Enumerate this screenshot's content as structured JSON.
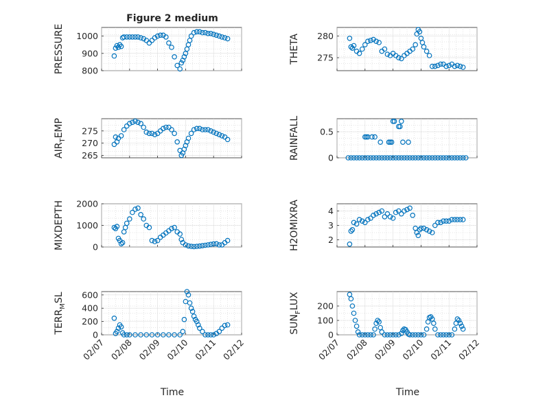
{
  "figure": {
    "title": "Figure 2 medium",
    "accent_color": "#0072BD",
    "x_label": "Time",
    "x_ticks": [
      "02/07",
      "02/08",
      "02/09",
      "02/10",
      "02/11",
      "02/12"
    ]
  },
  "chart_data": [
    {
      "type": "scatter",
      "ylabel": "PRESSURE",
      "xlim": [
        7,
        12
      ],
      "ylim": [
        800,
        1050
      ],
      "yticks": [
        800,
        900,
        1000
      ],
      "grid": true,
      "minor_grid": true,
      "x": [
        7.45,
        7.5,
        7.55,
        7.6,
        7.65,
        7.7,
        7.75,
        7.8,
        7.9,
        8.0,
        8.1,
        8.2,
        8.3,
        8.4,
        8.5,
        8.6,
        8.7,
        8.8,
        8.9,
        9.0,
        9.1,
        9.2,
        9.3,
        9.4,
        9.5,
        9.6,
        9.7,
        9.8,
        9.85,
        9.9,
        9.95,
        10.0,
        10.05,
        10.1,
        10.15,
        10.2,
        10.3,
        10.4,
        10.5,
        10.6,
        10.7,
        10.8,
        10.9,
        11.0,
        11.1,
        11.2,
        11.3,
        11.4,
        11.5
      ],
      "y": [
        885,
        930,
        945,
        935,
        950,
        940,
        990,
        995,
        995,
        995,
        995,
        995,
        995,
        990,
        985,
        975,
        960,
        975,
        990,
        1000,
        1005,
        1005,
        995,
        960,
        935,
        880,
        830,
        810,
        845,
        860,
        880,
        900,
        925,
        950,
        975,
        1000,
        1020,
        1025,
        1025,
        1020,
        1020,
        1015,
        1015,
        1010,
        1005,
        1000,
        995,
        990,
        985
      ]
    },
    {
      "type": "scatter",
      "ylabel": "THETA",
      "xlim": [
        7,
        12
      ],
      "ylim": [
        272,
        282
      ],
      "yticks": [
        275,
        280
      ],
      "grid": true,
      "minor_grid": true,
      "x": [
        7.45,
        7.5,
        7.55,
        7.6,
        7.7,
        7.8,
        7.9,
        8.0,
        8.1,
        8.2,
        8.3,
        8.4,
        8.5,
        8.6,
        8.7,
        8.8,
        8.9,
        9.0,
        9.1,
        9.2,
        9.3,
        9.4,
        9.5,
        9.6,
        9.7,
        9.8,
        9.85,
        9.9,
        9.95,
        10.0,
        10.05,
        10.1,
        10.2,
        10.3,
        10.4,
        10.5,
        10.6,
        10.7,
        10.8,
        10.9,
        11.0,
        11.1,
        11.2,
        11.3,
        11.4,
        11.5
      ],
      "y": [
        279.5,
        277.5,
        277.2,
        277.8,
        276.5,
        276.0,
        277.0,
        278.0,
        278.8,
        279.0,
        279.2,
        278.8,
        278.5,
        276.5,
        277.0,
        275.8,
        275.5,
        276.0,
        275.5,
        275.0,
        274.8,
        275.5,
        276.0,
        276.5,
        277.0,
        278.0,
        280.5,
        281.5,
        281.0,
        279.5,
        278.5,
        277.5,
        276.5,
        275.5,
        273.0,
        273.0,
        273.2,
        273.5,
        273.5,
        273.0,
        273.2,
        273.5,
        273.0,
        273.2,
        273.0,
        272.8
      ]
    },
    {
      "type": "scatter",
      "ylabel": "AIR_TEMP",
      "xlim": [
        7,
        12
      ],
      "ylim": [
        264,
        280
      ],
      "yticks": [
        265,
        270,
        275
      ],
      "grid": true,
      "minor_grid": true,
      "x": [
        7.45,
        7.5,
        7.55,
        7.6,
        7.7,
        7.8,
        7.9,
        8.0,
        8.1,
        8.2,
        8.3,
        8.4,
        8.5,
        8.6,
        8.7,
        8.8,
        8.9,
        9.0,
        9.1,
        9.2,
        9.3,
        9.4,
        9.5,
        9.6,
        9.7,
        9.8,
        9.85,
        9.9,
        9.95,
        10.0,
        10.05,
        10.1,
        10.2,
        10.3,
        10.4,
        10.5,
        10.6,
        10.7,
        10.8,
        10.9,
        11.0,
        11.1,
        11.2,
        11.3,
        11.4,
        11.5
      ],
      "y": [
        269.5,
        272.5,
        270.5,
        272.0,
        273.0,
        275.5,
        277.0,
        278.0,
        278.5,
        279.0,
        278.5,
        278.0,
        276.5,
        274.5,
        274.0,
        274.0,
        273.5,
        274.0,
        275.0,
        276.0,
        276.5,
        276.5,
        275.5,
        274.0,
        270.5,
        267.0,
        265.0,
        266.0,
        267.5,
        269.0,
        270.5,
        272.0,
        274.0,
        275.5,
        276.0,
        276.0,
        275.5,
        275.5,
        275.5,
        275.0,
        274.5,
        274.0,
        273.5,
        273.0,
        272.5,
        271.5
      ]
    },
    {
      "type": "scatter",
      "ylabel": "RAINFALL",
      "xlim": [
        7,
        12
      ],
      "ylim": [
        0,
        0.75
      ],
      "yticks": [
        0,
        0.5
      ],
      "grid": true,
      "minor_grid": true,
      "x": [
        7.4,
        7.5,
        7.6,
        7.7,
        7.8,
        7.9,
        8.0,
        8.1,
        8.2,
        8.3,
        8.4,
        8.5,
        8.6,
        8.7,
        8.8,
        8.9,
        9.0,
        9.1,
        9.2,
        9.3,
        9.4,
        9.5,
        9.6,
        9.7,
        9.8,
        9.9,
        10.0,
        10.1,
        10.2,
        10.3,
        10.4,
        10.5,
        10.6,
        10.7,
        10.8,
        10.9,
        11.0,
        11.1,
        11.2,
        11.3,
        11.4,
        11.5,
        11.6,
        8.0,
        8.05,
        8.1,
        8.25,
        8.35,
        8.55,
        8.85,
        8.9,
        8.95,
        9.0,
        9.05,
        9.2,
        9.25,
        9.3,
        9.55,
        9.35
      ],
      "y": [
        0,
        0,
        0,
        0,
        0,
        0,
        0,
        0,
        0,
        0,
        0,
        0,
        0,
        0,
        0,
        0,
        0,
        0,
        0,
        0,
        0,
        0,
        0,
        0,
        0,
        0,
        0,
        0,
        0,
        0,
        0,
        0,
        0,
        0,
        0,
        0,
        0,
        0,
        0,
        0,
        0,
        0,
        0,
        0.4,
        0.4,
        0.4,
        0.4,
        0.4,
        0.3,
        0.3,
        0.3,
        0.3,
        0.7,
        0.7,
        0.6,
        0.6,
        0.7,
        0.3,
        0.3
      ]
    },
    {
      "type": "scatter",
      "ylabel": "MIXDEPTH",
      "xlim": [
        7,
        12
      ],
      "ylim": [
        0,
        2000
      ],
      "yticks": [
        0,
        1000,
        2000
      ],
      "grid": true,
      "minor_grid": true,
      "x": [
        7.45,
        7.5,
        7.55,
        7.6,
        7.65,
        7.7,
        7.75,
        7.8,
        7.85,
        7.9,
        8.0,
        8.1,
        8.2,
        8.3,
        8.4,
        8.5,
        8.6,
        8.7,
        8.8,
        8.9,
        9.0,
        9.1,
        9.2,
        9.3,
        9.4,
        9.5,
        9.6,
        9.7,
        9.8,
        9.85,
        9.9,
        10.0,
        10.1,
        10.2,
        10.3,
        10.4,
        10.5,
        10.6,
        10.7,
        10.8,
        10.9,
        11.0,
        11.1,
        11.2,
        11.3,
        11.4,
        11.5
      ],
      "y": [
        900,
        850,
        950,
        400,
        300,
        150,
        200,
        700,
        900,
        1100,
        1300,
        1600,
        1750,
        1800,
        1500,
        1300,
        1000,
        900,
        300,
        250,
        300,
        450,
        550,
        650,
        750,
        850,
        900,
        700,
        600,
        350,
        200,
        100,
        50,
        30,
        20,
        30,
        40,
        60,
        80,
        100,
        120,
        140,
        150,
        100,
        100,
        200,
        300
      ]
    },
    {
      "type": "scatter",
      "ylabel": "H2OMIXRA",
      "xlim": [
        7,
        12
      ],
      "ylim": [
        1.5,
        4.5
      ],
      "yticks": [
        2,
        3,
        4
      ],
      "grid": true,
      "minor_grid": true,
      "x": [
        7.45,
        7.5,
        7.55,
        7.6,
        7.7,
        7.8,
        7.9,
        8.0,
        8.1,
        8.2,
        8.3,
        8.4,
        8.5,
        8.6,
        8.7,
        8.8,
        8.9,
        9.0,
        9.1,
        9.2,
        9.3,
        9.4,
        9.5,
        9.6,
        9.7,
        9.8,
        9.85,
        9.9,
        9.95,
        10.0,
        10.1,
        10.2,
        10.3,
        10.4,
        10.5,
        10.6,
        10.7,
        10.8,
        10.9,
        11.0,
        11.1,
        11.2,
        11.3,
        11.4,
        11.5
      ],
      "y": [
        1.7,
        2.6,
        2.7,
        3.2,
        3.1,
        3.4,
        3.3,
        3.2,
        3.4,
        3.5,
        3.7,
        3.8,
        3.9,
        4.0,
        3.6,
        3.8,
        3.6,
        3.5,
        3.9,
        4.0,
        3.8,
        4.0,
        4.1,
        4.2,
        3.7,
        2.8,
        2.5,
        2.3,
        2.7,
        2.8,
        2.8,
        2.7,
        2.6,
        2.5,
        3.0,
        3.2,
        3.2,
        3.3,
        3.3,
        3.3,
        3.4,
        3.4,
        3.4,
        3.4,
        3.4
      ]
    },
    {
      "type": "scatter",
      "ylabel": "TERR_MSL",
      "xlim": [
        7,
        12
      ],
      "ylim": [
        0,
        650
      ],
      "yticks": [
        0,
        200,
        400,
        600
      ],
      "grid": true,
      "minor_grid": true,
      "x": [
        7.45,
        7.5,
        7.55,
        7.6,
        7.65,
        7.7,
        7.75,
        7.8,
        7.9,
        8.0,
        8.2,
        8.4,
        8.6,
        8.8,
        9.0,
        9.2,
        9.4,
        9.6,
        9.8,
        9.9,
        9.95,
        10.0,
        10.05,
        10.1,
        10.15,
        10.2,
        10.25,
        10.3,
        10.35,
        10.4,
        10.45,
        10.5,
        10.6,
        10.7,
        10.8,
        10.9,
        11.0,
        11.1,
        11.2,
        11.3,
        11.4,
        11.5
      ],
      "y": [
        250,
        20,
        50,
        100,
        150,
        120,
        30,
        0,
        0,
        0,
        0,
        0,
        0,
        0,
        0,
        0,
        0,
        0,
        0,
        50,
        230,
        500,
        650,
        600,
        480,
        400,
        350,
        280,
        230,
        200,
        150,
        100,
        50,
        0,
        0,
        0,
        0,
        20,
        50,
        100,
        140,
        150
      ]
    },
    {
      "type": "scatter",
      "ylabel": "SUN_FLUX",
      "xlim": [
        7,
        12
      ],
      "ylim": [
        0,
        300
      ],
      "yticks": [
        0,
        100,
        200
      ],
      "grid": true,
      "minor_grid": true,
      "x": [
        7.45,
        7.5,
        7.55,
        7.6,
        7.65,
        7.7,
        7.75,
        7.8,
        7.9,
        8.0,
        8.1,
        8.2,
        8.3,
        8.35,
        8.4,
        8.45,
        8.5,
        8.55,
        8.6,
        8.7,
        8.8,
        8.9,
        9.0,
        9.1,
        9.2,
        9.3,
        9.35,
        9.4,
        9.45,
        9.5,
        9.55,
        9.6,
        9.7,
        9.8,
        9.9,
        10.0,
        10.1,
        10.2,
        10.25,
        10.3,
        10.35,
        10.4,
        10.45,
        10.5,
        10.6,
        10.7,
        10.8,
        10.9,
        11.0,
        11.1,
        11.2,
        11.25,
        11.3,
        11.35,
        11.4,
        11.45,
        11.5
      ],
      "y": [
        280,
        250,
        200,
        150,
        100,
        60,
        20,
        0,
        0,
        0,
        0,
        0,
        0,
        40,
        80,
        100,
        90,
        50,
        20,
        0,
        0,
        0,
        0,
        0,
        0,
        10,
        30,
        40,
        35,
        20,
        5,
        0,
        0,
        0,
        0,
        0,
        0,
        40,
        90,
        120,
        125,
        110,
        80,
        40,
        0,
        0,
        0,
        0,
        0,
        0,
        40,
        80,
        110,
        100,
        80,
        60,
        40
      ]
    }
  ]
}
